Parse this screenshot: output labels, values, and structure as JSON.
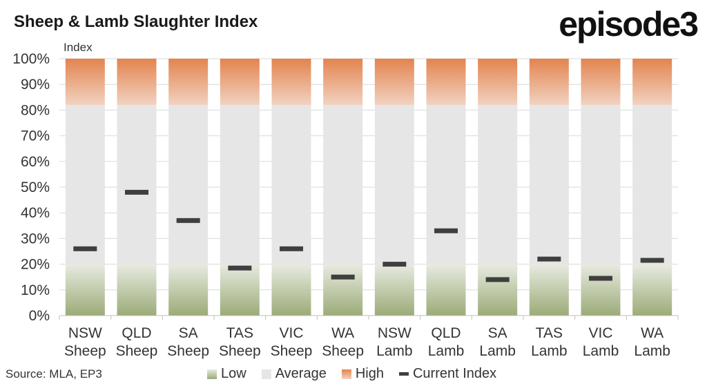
{
  "title": "Sheep & Lamb Slaughter Index",
  "logo": "episode3",
  "source": "Source: MLA, EP3",
  "colors": {
    "low_top": "#e7ebe1",
    "low_bottom": "#9cab78",
    "average": "#e6e6e6",
    "high_top": "#e3844f",
    "high_bottom": "#f1d2c0",
    "current": "#3f3f3f"
  },
  "legend": {
    "low": "Low",
    "average": "Average",
    "high": "High",
    "current": "Current Index"
  },
  "chart_data": {
    "type": "bar",
    "ylabel": "Index",
    "ylim": [
      0,
      100
    ],
    "ytick_labels": [
      "0%",
      "10%",
      "20%",
      "30%",
      "40%",
      "50%",
      "60%",
      "70%",
      "80%",
      "90%",
      "100%"
    ],
    "categories": [
      [
        "NSW",
        "Sheep"
      ],
      [
        "QLD",
        "Sheep"
      ],
      [
        "SA",
        "Sheep"
      ],
      [
        "TAS",
        "Sheep"
      ],
      [
        "VIC",
        "Sheep"
      ],
      [
        "WA",
        "Sheep"
      ],
      [
        "NSW",
        "Lamb"
      ],
      [
        "QLD",
        "Lamb"
      ],
      [
        "SA",
        "Lamb"
      ],
      [
        "TAS",
        "Lamb"
      ],
      [
        "VIC",
        "Lamb"
      ],
      [
        "WA",
        "Lamb"
      ]
    ],
    "bands": [
      {
        "name": "Low",
        "from": 0,
        "to": 20
      },
      {
        "name": "Average",
        "from": 20,
        "to": 82
      },
      {
        "name": "High",
        "from": 82,
        "to": 100
      }
    ],
    "series": [
      {
        "name": "Current Index",
        "values": [
          26,
          48,
          37,
          18.5,
          26,
          15,
          20,
          33,
          14,
          22,
          14.5,
          21.5
        ]
      }
    ],
    "grid": true,
    "legend_position": "bottom"
  }
}
